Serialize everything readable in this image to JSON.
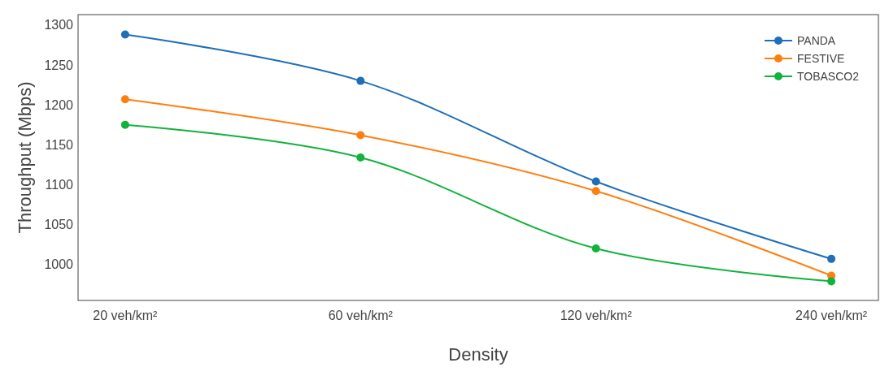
{
  "chart_data": {
    "type": "line",
    "xlabel": "Density",
    "ylabel": "Throughput (Mbps)",
    "categories": [
      "20 veh/km²",
      "60 veh/km²",
      "120 veh/km²",
      "240 veh/km²"
    ],
    "series": [
      {
        "name": "PANDA",
        "color": "#1f6eb8",
        "values": [
          1288,
          1230,
          1104,
          1007
        ]
      },
      {
        "name": "FESTIVE",
        "color": "#ff7f0e",
        "values": [
          1207,
          1162,
          1092,
          986
        ]
      },
      {
        "name": "TOBASCO2",
        "color": "#10b33c",
        "values": [
          1175,
          1134,
          1020,
          979
        ]
      }
    ],
    "ylim": [
      955,
      1313
    ],
    "yticks": [
      1000,
      1050,
      1100,
      1150,
      1200,
      1250,
      1300
    ],
    "grid": false,
    "legend": "top right",
    "marker": "circle",
    "line_style": "solid"
  }
}
